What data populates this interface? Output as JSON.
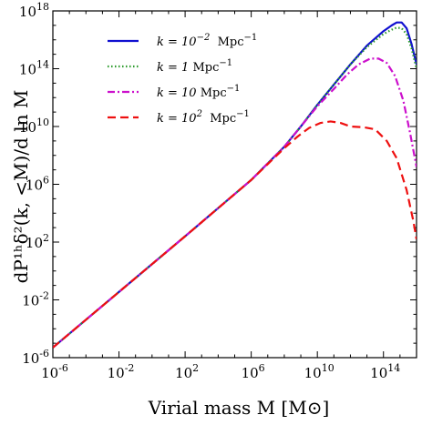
{
  "chart_data": {
    "type": "line",
    "xlabel": "Virial mass M [M⊙]",
    "ylabel": "dP¹ʰδ²(k, <M)/d ln M",
    "x_scale": "log",
    "y_scale": "log",
    "xlim_log10": [
      -6,
      16
    ],
    "ylim_log10": [
      -6,
      18
    ],
    "x_ticks": [
      {
        "exp": -6,
        "base": "10",
        "sup": "-6"
      },
      {
        "exp": -2,
        "base": "10",
        "sup": "-2"
      },
      {
        "exp": 2,
        "base": "10",
        "sup": "2"
      },
      {
        "exp": 6,
        "base": "10",
        "sup": "6"
      },
      {
        "exp": 10,
        "base": "10",
        "sup": "10"
      },
      {
        "exp": 14,
        "base": "10",
        "sup": "14"
      }
    ],
    "y_ticks": [
      {
        "exp": -6,
        "base": "10",
        "sup": "-6"
      },
      {
        "exp": -2,
        "base": "10",
        "sup": "-2"
      },
      {
        "exp": 2,
        "base": "10",
        "sup": "2"
      },
      {
        "exp": 6,
        "base": "10",
        "sup": "6"
      },
      {
        "exp": 10,
        "base": "10",
        "sup": "10"
      },
      {
        "exp": 14,
        "base": "10",
        "sup": "14"
      },
      {
        "exp": 18,
        "base": "10",
        "sup": "18"
      }
    ],
    "legend_placement": "top-left",
    "series": [
      {
        "name": "k = 10⁻² Mpc⁻¹",
        "legend_main": "k = 10",
        "legend_sup": "−2",
        "legend_unit": "Mpc",
        "legend_unit_sup": "−1",
        "color": "#1010d0",
        "dash": "",
        "log10_x": [
          -6,
          -2,
          2,
          6,
          8,
          9,
          10,
          11,
          12,
          13,
          14,
          14.5,
          14.8,
          15.1,
          15.4,
          15.7,
          16
        ],
        "log10_y": [
          -5.3,
          -1.45,
          2.4,
          6.3,
          8.6,
          10.0,
          11.5,
          12.9,
          14.3,
          15.6,
          16.6,
          17.0,
          17.2,
          17.2,
          16.8,
          15.7,
          14.3
        ]
      },
      {
        "name": "k = 1 Mpc⁻¹",
        "legend_main": "k = 1",
        "legend_sup": "",
        "legend_unit": "Mpc",
        "legend_unit_sup": "−1",
        "color": "#2a9a2a",
        "dash": "1.5 2.5",
        "log10_x": [
          -6,
          -2,
          2,
          6,
          8,
          9,
          10,
          11,
          12,
          13,
          14,
          14.5,
          14.8,
          15.1,
          15.4,
          15.7,
          16
        ],
        "log10_y": [
          -5.3,
          -1.45,
          2.4,
          6.3,
          8.6,
          10.0,
          11.5,
          12.9,
          14.3,
          15.5,
          16.4,
          16.7,
          16.85,
          16.8,
          16.4,
          15.4,
          14.0
        ]
      },
      {
        "name": "k = 10 Mpc⁻¹",
        "legend_main": "k = 10",
        "legend_sup": "",
        "legend_unit": "Mpc",
        "legend_unit_sup": "−1",
        "color": "#cc10cc",
        "dash": "8 3 2 3",
        "log10_x": [
          -6,
          -2,
          2,
          6,
          8,
          9,
          10,
          11,
          11.8,
          12.5,
          13.2,
          13.7,
          14.2,
          14.7,
          15.2,
          15.6,
          16
        ],
        "log10_y": [
          -5.3,
          -1.45,
          2.4,
          6.3,
          8.6,
          10.0,
          11.4,
          12.6,
          13.6,
          14.3,
          14.7,
          14.7,
          14.4,
          13.5,
          11.8,
          9.6,
          7.2
        ]
      },
      {
        "name": "k = 10² Mpc⁻¹",
        "legend_main": "k = 10",
        "legend_sup": "2",
        "legend_unit": "Mpc",
        "legend_unit_sup": "−1",
        "color": "#ee1010",
        "dash": "9 5",
        "log10_x": [
          -6,
          -2,
          2,
          6,
          7,
          8,
          8.8,
          9.5,
          10.2,
          10.8,
          11.4,
          12,
          12.8,
          13.5,
          14.2,
          14.8,
          15.4,
          15.8,
          16
        ],
        "log10_y": [
          -5.3,
          -1.45,
          2.4,
          6.3,
          7.4,
          8.5,
          9.3,
          9.9,
          10.25,
          10.35,
          10.25,
          10.0,
          9.95,
          9.8,
          9.0,
          7.8,
          5.6,
          3.5,
          2.2
        ]
      }
    ]
  }
}
